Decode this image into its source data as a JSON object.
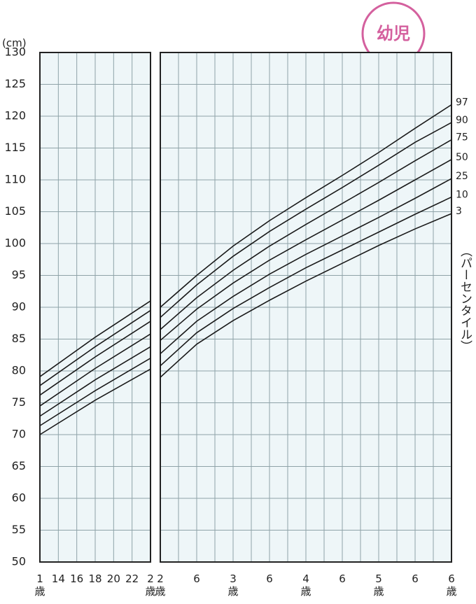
{
  "badge": "幼児",
  "chart_data": [
    {
      "type": "line",
      "y_label": "(cm)",
      "xlim": [
        12,
        24
      ],
      "ylim": [
        50,
        130
      ],
      "xticks": [
        {
          "value": 12,
          "label": "1\n歳"
        },
        14,
        16,
        18,
        20,
        22,
        {
          "value": 24,
          "label": "2\n歳"
        }
      ],
      "yticks": [
        50,
        55,
        60,
        65,
        70,
        75,
        80,
        85,
        90,
        95,
        100,
        105,
        110,
        115,
        120,
        125,
        130
      ],
      "grid": true,
      "color": "#1a1a1a",
      "x": [
        12,
        18,
        24
      ],
      "series": [
        {
          "values": [
            79.1,
            85.3,
            91.0
          ]
        },
        {
          "values": [
            77.7,
            83.8,
            89.5
          ]
        },
        {
          "values": [
            76.2,
            82.2,
            87.8
          ]
        },
        {
          "values": [
            74.5,
            80.4,
            85.8
          ]
        },
        {
          "values": [
            72.9,
            78.6,
            83.8
          ]
        },
        {
          "values": [
            71.4,
            76.9,
            82.0
          ]
        },
        {
          "values": [
            70.0,
            75.4,
            80.3
          ]
        }
      ]
    },
    {
      "type": "line",
      "legend_title": "（パーセンタイル）",
      "xlim": [
        2,
        6
      ],
      "ylim": [
        50,
        130
      ],
      "xticks": [
        {
          "value": 2,
          "label": "2\n歳"
        },
        {
          "value": 2.5,
          "label": "6"
        },
        {
          "value": 3,
          "label": "3\n歳"
        },
        {
          "value": 3.5,
          "label": "6"
        },
        {
          "value": 4,
          "label": "4\n歳"
        },
        {
          "value": 4.5,
          "label": "6"
        },
        {
          "value": 5,
          "label": "5\n歳"
        },
        {
          "value": 5.5,
          "label": "6"
        },
        {
          "value": 6,
          "label": "6\n歳"
        }
      ],
      "xminorticks": [
        2.25,
        2.75,
        3.25,
        3.75,
        4.25,
        4.75,
        5.25,
        5.75
      ],
      "grid": true,
      "color": "#1a1a1a",
      "x": [
        2,
        2.5,
        3,
        3.5,
        4,
        4.5,
        5,
        5.5,
        6
      ],
      "series": [
        {
          "name": "97",
          "values": [
            90.0,
            95.0,
            99.6,
            103.6,
            107.2,
            110.7,
            114.3,
            118.1,
            121.8
          ]
        },
        {
          "name": "90",
          "values": [
            88.4,
            93.5,
            98.0,
            101.9,
            105.4,
            108.8,
            112.3,
            115.9,
            119.0
          ]
        },
        {
          "name": "75",
          "values": [
            86.5,
            91.5,
            95.8,
            99.6,
            103.0,
            106.3,
            109.6,
            113.0,
            116.3
          ]
        },
        {
          "name": "50",
          "values": [
            84.8,
            89.7,
            93.8,
            97.4,
            100.6,
            103.7,
            106.8,
            110.0,
            113.2
          ]
        },
        {
          "name": "25",
          "values": [
            82.7,
            87.8,
            91.7,
            95.2,
            98.3,
            101.2,
            104.1,
            107.1,
            110.2
          ]
        },
        {
          "name": "10",
          "values": [
            80.8,
            86.0,
            89.8,
            93.1,
            96.2,
            99.0,
            101.8,
            104.6,
            107.3
          ]
        },
        {
          "name": "3",
          "values": [
            79.0,
            84.2,
            87.9,
            91.1,
            94.1,
            96.9,
            99.7,
            102.3,
            104.7
          ]
        }
      ]
    }
  ]
}
